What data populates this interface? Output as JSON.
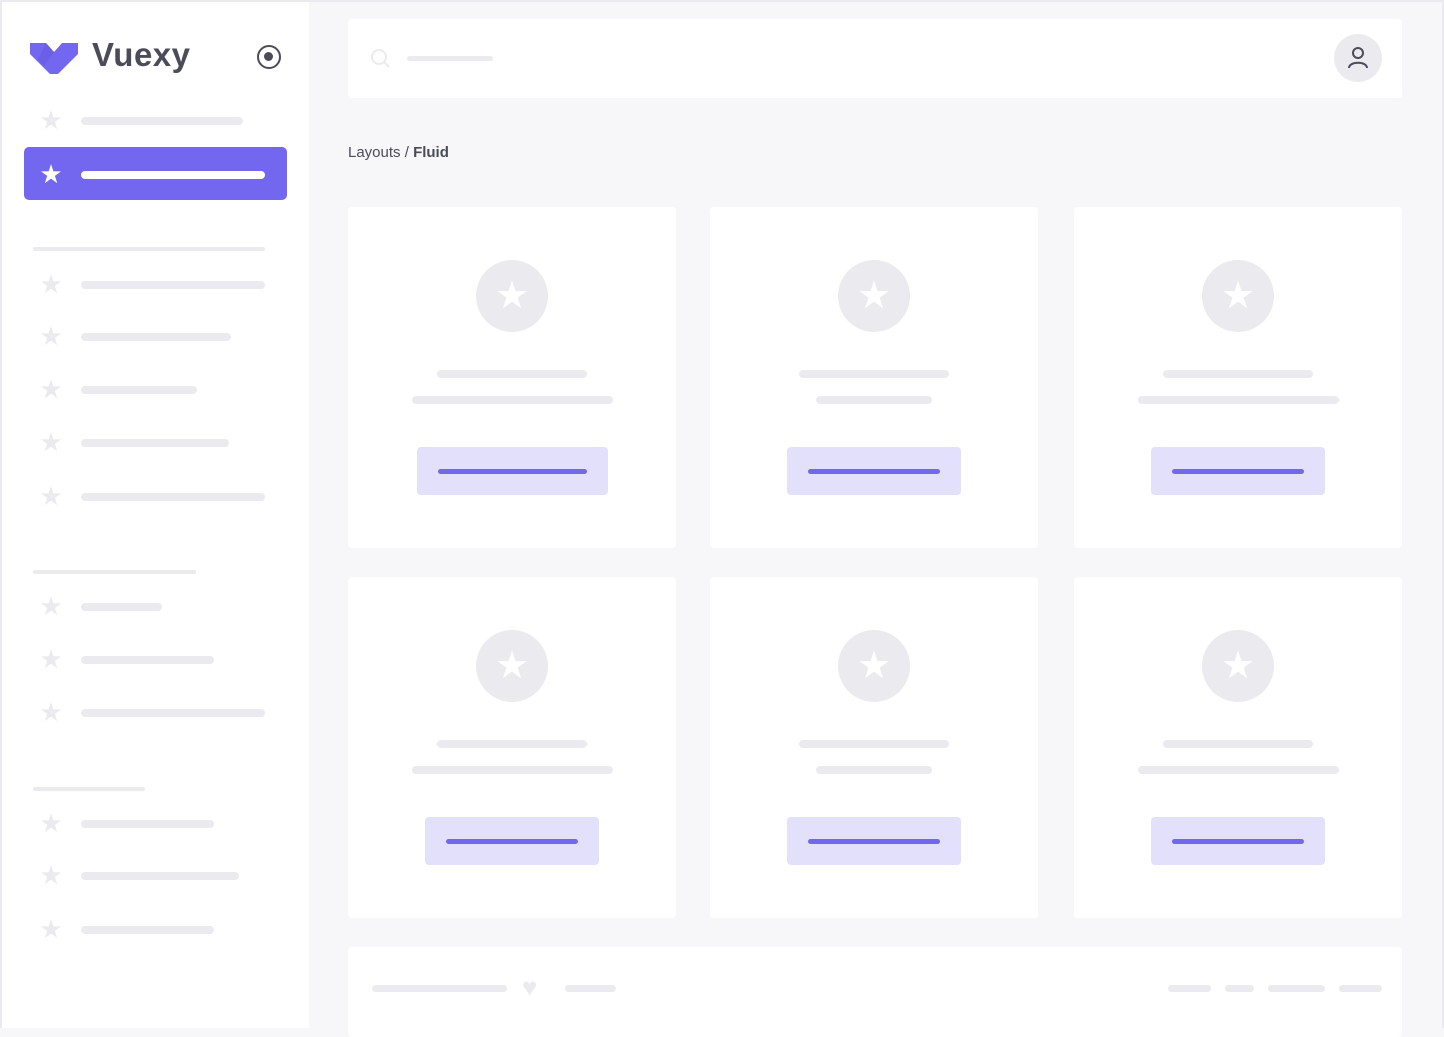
{
  "brand": {
    "name": "Vuexy",
    "color": "#7367f0"
  },
  "sidebar": {
    "toggle_icon": "radio-circle-icon",
    "item_icon": "star-icon",
    "active_index": 1
  },
  "header": {
    "search_icon": "search-icon",
    "avatar_icon": "user-icon"
  },
  "breadcrumb": {
    "parent": "Layouts",
    "separator": " / ",
    "current": "Fluid"
  },
  "cards": {
    "icon": "star-icon",
    "count": 6
  },
  "footer": {
    "icon": "heart-icon"
  },
  "colors": {
    "accent": "#7367f0",
    "accent_light": "#e3e0fb",
    "placeholder": "#ebebef",
    "background": "#f7f7f9",
    "text": "#4b4b5a"
  }
}
